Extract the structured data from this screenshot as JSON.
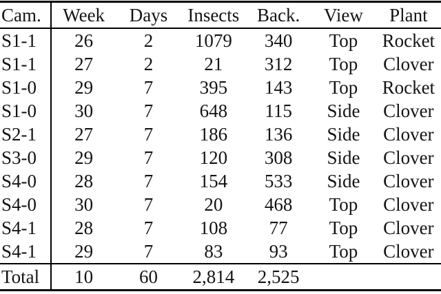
{
  "colors": {
    "text": "#141414",
    "rule": "#000000",
    "background": "#ffffff"
  },
  "table": {
    "columns": [
      "Cam.",
      "Week",
      "Days",
      "Insects",
      "Back.",
      "View",
      "Plant"
    ],
    "column_keys": [
      "cam",
      "week",
      "days",
      "insects",
      "back",
      "view",
      "plant"
    ],
    "rows": [
      [
        "S1-1",
        "26",
        "2",
        "1079",
        "340",
        "Top",
        "Rocket"
      ],
      [
        "S1-1",
        "27",
        "2",
        "21",
        "312",
        "Top",
        "Clover"
      ],
      [
        "S1-0",
        "29",
        "7",
        "395",
        "143",
        "Top",
        "Rocket"
      ],
      [
        "S1-0",
        "30",
        "7",
        "648",
        "115",
        "Side",
        "Clover"
      ],
      [
        "S2-1",
        "27",
        "7",
        "186",
        "136",
        "Side",
        "Clover"
      ],
      [
        "S3-0",
        "29",
        "7",
        "120",
        "308",
        "Side",
        "Clover"
      ],
      [
        "S4-0",
        "28",
        "7",
        "154",
        "533",
        "Side",
        "Clover"
      ],
      [
        "S4-0",
        "30",
        "7",
        "20",
        "468",
        "Top",
        "Clover"
      ],
      [
        "S4-1",
        "28",
        "7",
        "108",
        "77",
        "Top",
        "Clover"
      ],
      [
        "S4-1",
        "29",
        "7",
        "83",
        "93",
        "Top",
        "Clover"
      ]
    ],
    "total_row": [
      "Total",
      "10",
      "60",
      "2,814",
      "2,525",
      "",
      ""
    ]
  }
}
